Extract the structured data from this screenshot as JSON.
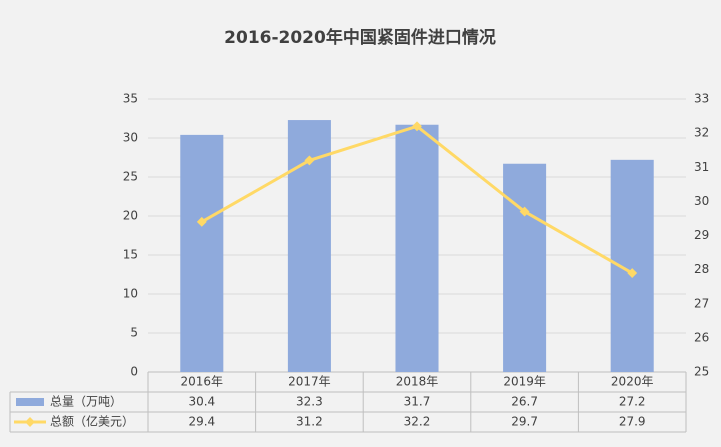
{
  "chart_data": {
    "type": "bar-line",
    "title": "2016-2020年中国紧固件进口情况",
    "categories": [
      "2016年",
      "2017年",
      "2018年",
      "2019年",
      "2020年"
    ],
    "series": [
      {
        "name": "总量（万吨）",
        "type": "bar",
        "color": "#8faadc",
        "values": [
          30.4,
          32.3,
          31.7,
          26.7,
          27.2
        ]
      },
      {
        "name": "总额（亿美元）",
        "type": "line",
        "axis": "y2",
        "color": "#ffd966",
        "values": [
          29.4,
          31.2,
          32.2,
          29.7,
          27.9
        ]
      }
    ],
    "ylim": [
      0,
      35
    ],
    "yticks": [
      0,
      5,
      10,
      15,
      20,
      25,
      30,
      35
    ],
    "y2lim": [
      25,
      33
    ],
    "y2ticks": [
      25,
      26,
      27,
      28,
      29,
      30,
      31,
      32,
      33
    ],
    "grid": true,
    "data_table": true
  }
}
